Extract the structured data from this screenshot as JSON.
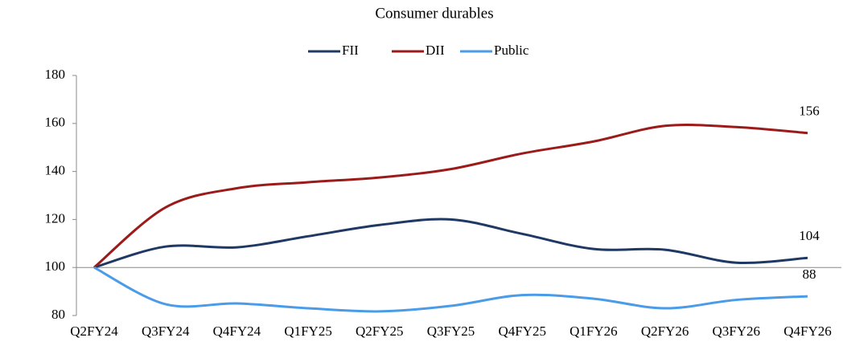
{
  "chart_data": {
    "type": "line",
    "title": "Consumer durables",
    "categories": [
      "Q2FY24",
      "Q3FY24",
      "Q4FY24",
      "Q1FY25",
      "Q2FY25",
      "Q3FY25",
      "Q4FY25",
      "Q1FY26",
      "Q2FY26",
      "Q3FY26",
      "Q4FY26"
    ],
    "series": [
      {
        "name": "FII",
        "color": "#1f3864",
        "values": [
          100,
          108.7,
          108.4,
          113,
          117.7,
          120,
          114,
          107.7,
          107.4,
          102,
          104
        ]
      },
      {
        "name": "DII",
        "color": "#9b1b1b",
        "values": [
          100,
          125,
          133,
          135.5,
          137.5,
          141,
          147.5,
          152.5,
          159,
          158.5,
          156
        ]
      },
      {
        "name": "Public",
        "color": "#4a9be8",
        "values": [
          100,
          84.7,
          85,
          83,
          81.7,
          84,
          88.5,
          87,
          83,
          86.5,
          88
        ]
      }
    ],
    "ylim": [
      80,
      180
    ],
    "yticks": [
      80,
      100,
      120,
      140,
      160,
      180
    ],
    "x_axis_crosses": 100,
    "smooth": true,
    "legend": "top",
    "grid": false
  }
}
